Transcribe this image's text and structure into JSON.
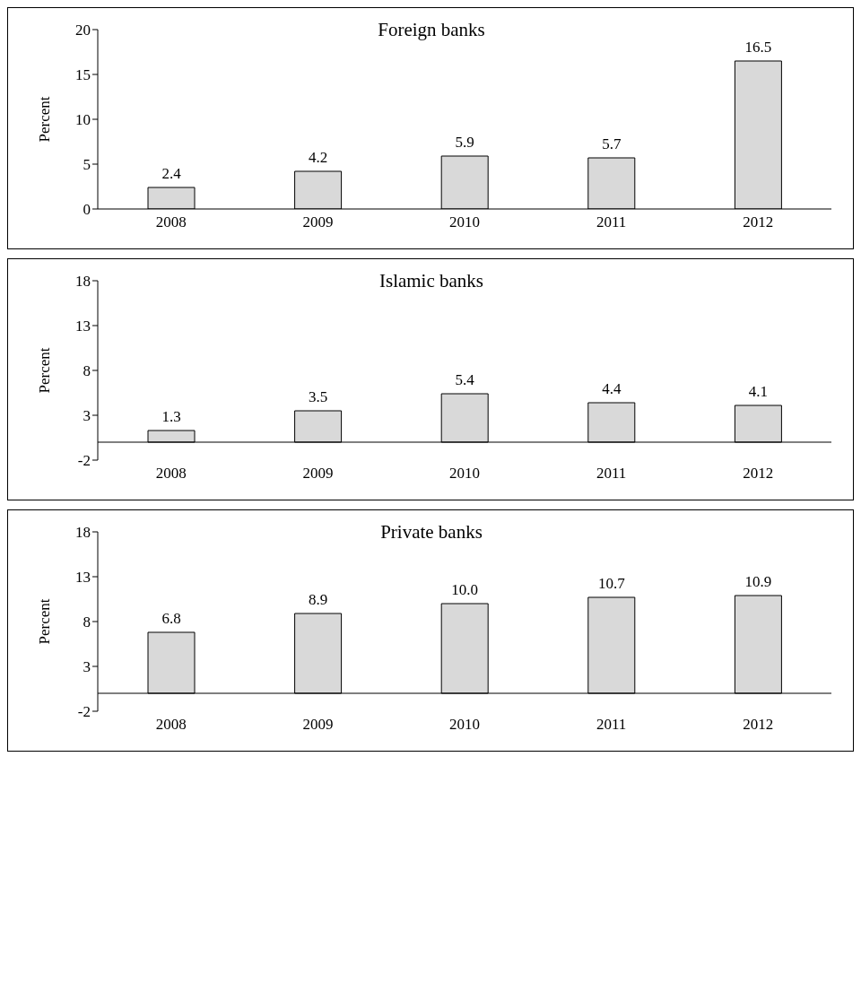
{
  "chart_data": [
    {
      "type": "bar",
      "title": "Foreign banks",
      "ylabel": "Percent",
      "categories": [
        "2008",
        "2009",
        "2010",
        "2011",
        "2012"
      ],
      "values": [
        2.4,
        4.2,
        5.9,
        5.7,
        16.5
      ],
      "value_labels": [
        "2.4",
        "4.2",
        "5.9",
        "5.7",
        "16.5"
      ],
      "color": "#d9d9d9",
      "ylim": [
        0,
        20
      ],
      "yticks": [
        0,
        5,
        10,
        15,
        20
      ],
      "grid": false,
      "legend": false
    },
    {
      "type": "bar",
      "title": "Islamic banks",
      "ylabel": "Percent",
      "categories": [
        "2008",
        "2009",
        "2010",
        "2011",
        "2012"
      ],
      "values": [
        1.3,
        3.5,
        5.4,
        4.4,
        4.1
      ],
      "value_labels": [
        "1.3",
        "3.5",
        "5.4",
        "4.4",
        "4.1"
      ],
      "color": "#d9d9d9",
      "ylim": [
        -2,
        18
      ],
      "yticks": [
        -2,
        3,
        8,
        13,
        18
      ],
      "grid": false,
      "legend": false
    },
    {
      "type": "bar",
      "title": "Private banks",
      "ylabel": "Percent",
      "categories": [
        "2008",
        "2009",
        "2010",
        "2011",
        "2012"
      ],
      "values": [
        6.8,
        8.9,
        10.0,
        10.7,
        10.9
      ],
      "value_labels": [
        "6.8",
        "8.9",
        "10.0",
        "10.7",
        "10.9"
      ],
      "color": "#d9d9d9",
      "ylim": [
        -2,
        18
      ],
      "yticks": [
        -2,
        3,
        8,
        13,
        18
      ],
      "grid": false,
      "legend": false
    }
  ]
}
